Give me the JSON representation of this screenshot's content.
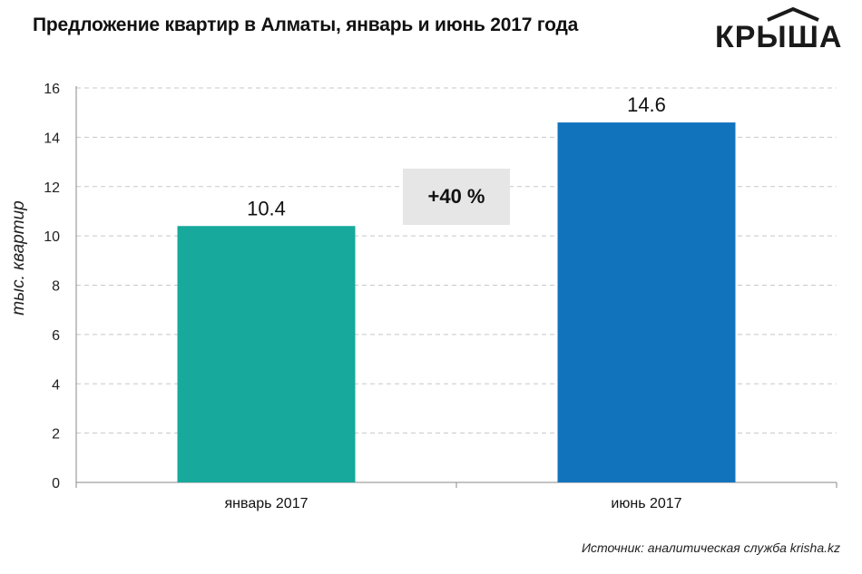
{
  "title": "Предложение квартир в Алматы, январь и июнь 2017 года",
  "logo": {
    "text": "КРЫША"
  },
  "source": "Источник: аналитическая служба krisha.kz",
  "annotation": "+40 %",
  "colors": {
    "bar1": "#17a99b",
    "bar2": "#1273bd",
    "grid": "#c8c8c8",
    "annotation_bg": "#e6e6e6"
  },
  "chart_data": {
    "type": "bar",
    "title": "Предложение квартир в Алматы, январь и июнь 2017 года",
    "categories": [
      "январь 2017",
      "июнь 2017"
    ],
    "values": [
      10.4,
      14.6
    ],
    "value_labels": [
      "10.4",
      "14.6"
    ],
    "xlabel": "",
    "ylabel": "тыс. квартир",
    "ylim": [
      0,
      16
    ],
    "yticks": [
      0,
      2,
      4,
      6,
      8,
      10,
      12,
      14,
      16
    ],
    "grid": true
  }
}
